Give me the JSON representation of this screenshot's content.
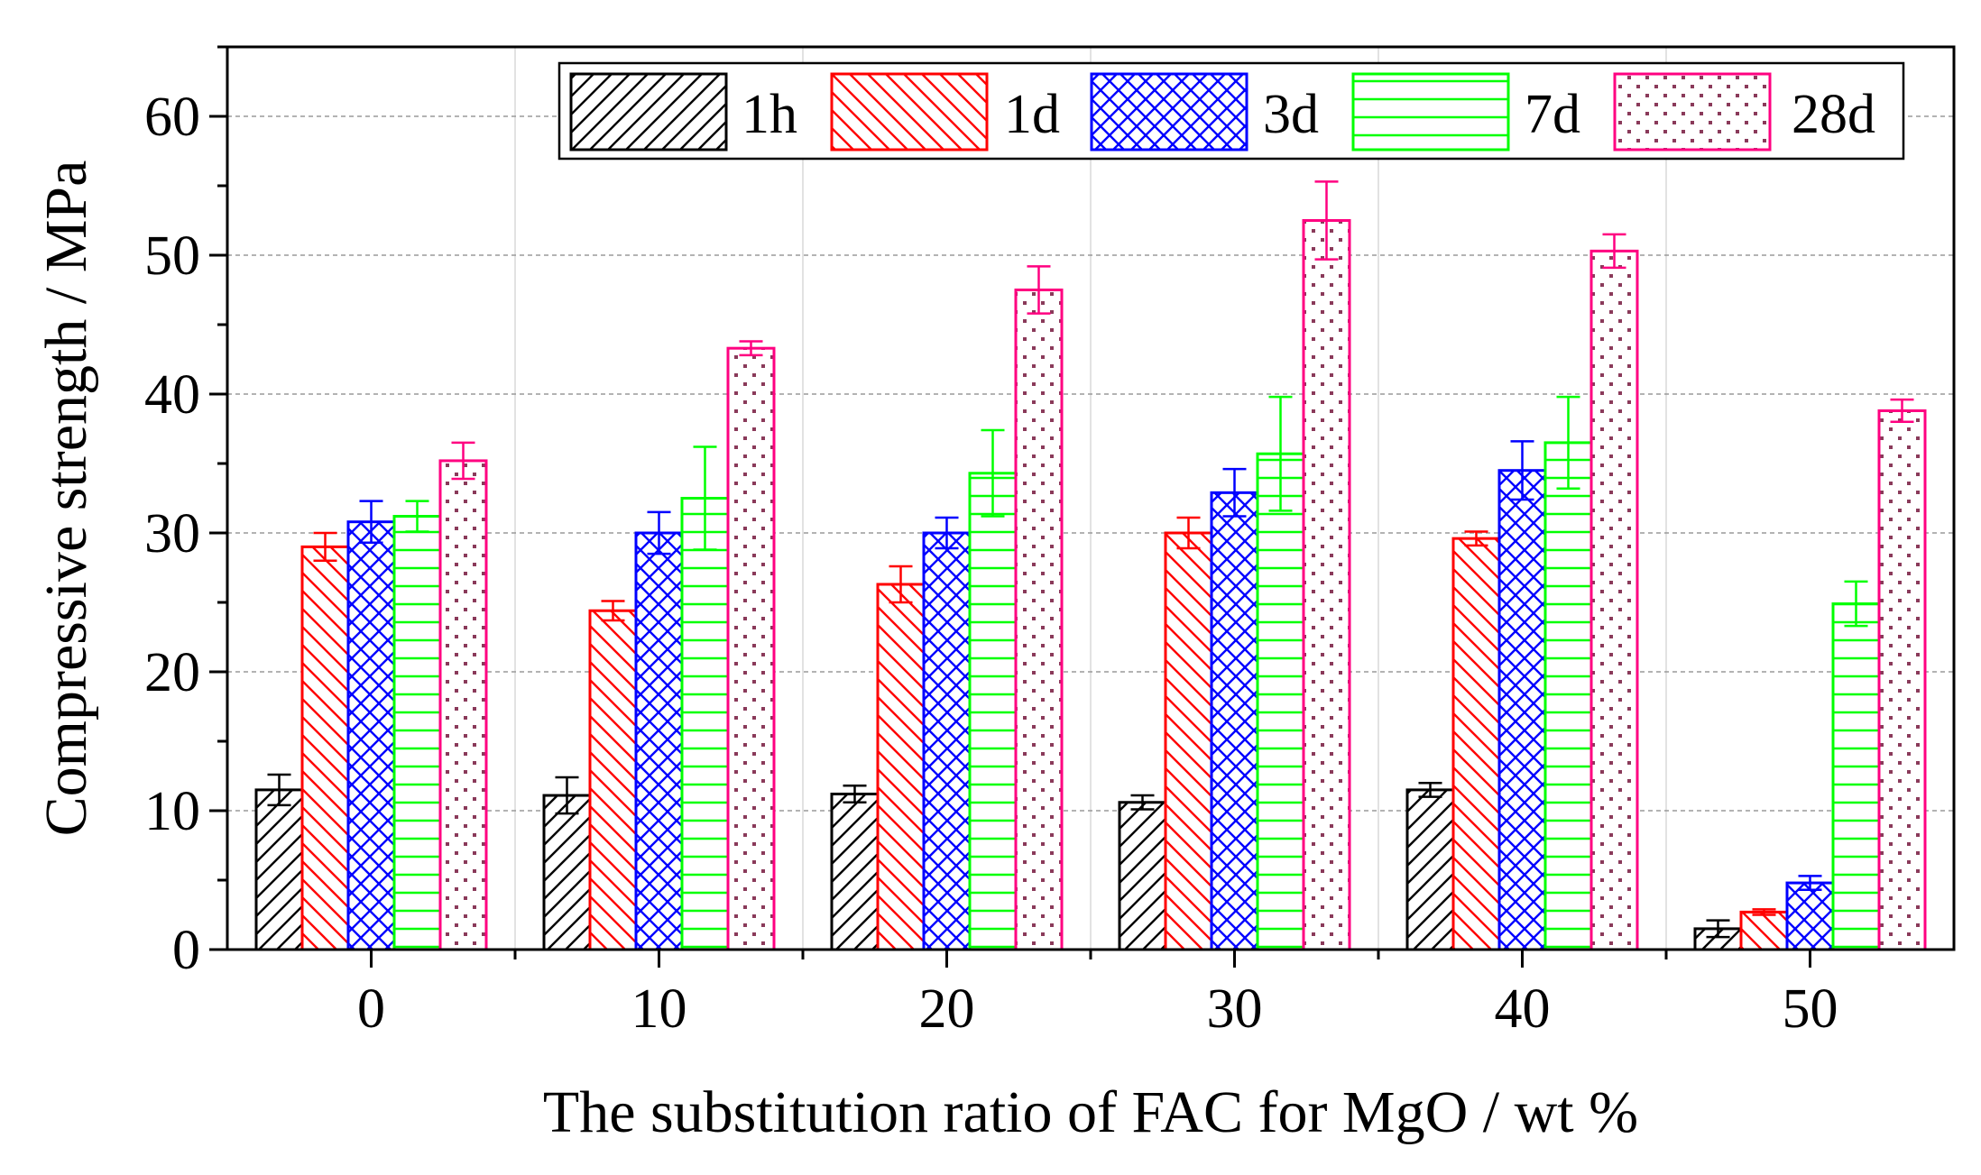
{
  "chart_data": {
    "type": "bar",
    "title": "",
    "xlabel": "The substitution ratio of FAC for MgO / wt %",
    "ylabel": "Compressive strength / MPa",
    "ylim": [
      0,
      65
    ],
    "yticks": [
      0,
      10,
      20,
      30,
      40,
      50,
      60
    ],
    "categories": [
      "0",
      "10",
      "20",
      "30",
      "40",
      "50"
    ],
    "grid": "horizontal dashed",
    "legend_position": "top-right",
    "series": [
      {
        "name": "1h",
        "color": "#000000",
        "pattern": "diagonal-up",
        "values": [
          11.5,
          11.1,
          11.2,
          10.6,
          11.5,
          1.5
        ],
        "errors": [
          1.1,
          1.3,
          0.6,
          0.5,
          0.5,
          0.6
        ]
      },
      {
        "name": "1d",
        "color": "#ff0000",
        "pattern": "diagonal-down",
        "values": [
          29.0,
          24.4,
          26.3,
          30.0,
          29.6,
          2.7
        ],
        "errors": [
          1.0,
          0.7,
          1.3,
          1.1,
          0.5,
          0.2
        ]
      },
      {
        "name": "3d",
        "color": "#0000ff",
        "pattern": "crosshatch",
        "values": [
          30.8,
          30.0,
          30.0,
          32.9,
          34.5,
          4.8
        ],
        "errors": [
          1.5,
          1.5,
          1.1,
          1.7,
          2.1,
          0.5
        ]
      },
      {
        "name": "7d",
        "color": "#00ff00",
        "pattern": "horizontal",
        "values": [
          31.2,
          32.5,
          34.3,
          35.7,
          36.5,
          24.9
        ],
        "errors": [
          1.1,
          3.7,
          3.1,
          4.1,
          3.3,
          1.6
        ]
      },
      {
        "name": "28d",
        "color": "#ff0080",
        "pattern": "dots",
        "values": [
          35.2,
          43.3,
          47.5,
          52.5,
          50.3,
          38.8
        ],
        "errors": [
          1.3,
          0.5,
          1.7,
          2.8,
          1.2,
          0.8
        ]
      }
    ]
  }
}
